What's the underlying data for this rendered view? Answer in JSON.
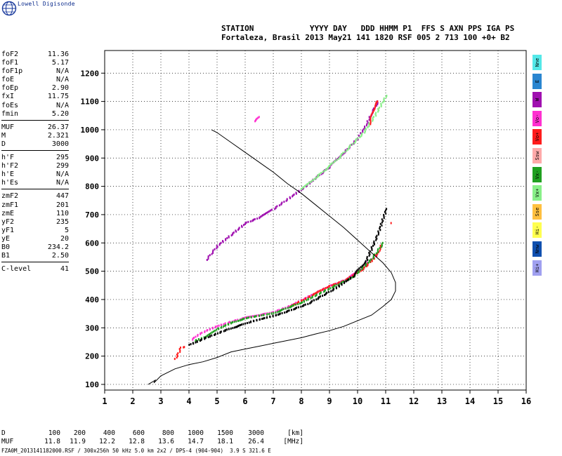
{
  "brand": "Lowell Digisonde",
  "header": {
    "line1": "STATION            YYYY DAY   DDD HHMM P1  FFS S AXN PPS IGA PS",
    "line2": "Fortaleza, Brasil 2013 May21 141 1820 RSF 005 2 713 100 +0+ B2"
  },
  "params": [
    {
      "label": "foF2",
      "value": "11.36"
    },
    {
      "label": "foF1",
      "value": "5.17"
    },
    {
      "label": "foF1p",
      "value": "N/A"
    },
    {
      "label": "foE",
      "value": "N/A"
    },
    {
      "label": "foEp",
      "value": "2.90"
    },
    {
      "label": "fxI",
      "value": "11.75"
    },
    {
      "label": "foEs",
      "value": "N/A"
    },
    {
      "label": "fmin",
      "value": "5.20"
    },
    {
      "sep": true
    },
    {
      "label": "MUF",
      "value": "26.37"
    },
    {
      "label": "M",
      "value": "2.321"
    },
    {
      "label": "D",
      "value": "3000"
    },
    {
      "sep": true
    },
    {
      "label": "h'F",
      "value": "295"
    },
    {
      "label": "h'F2",
      "value": "299"
    },
    {
      "label": "h'E",
      "value": "N/A"
    },
    {
      "label": "h'Es",
      "value": "N/A"
    },
    {
      "sep": true
    },
    {
      "label": "zmF2",
      "value": "447"
    },
    {
      "label": "zmF1",
      "value": "201"
    },
    {
      "label": "zmE",
      "value": "110"
    },
    {
      "label": "yF2",
      "value": "235"
    },
    {
      "label": "yF1",
      "value": "5"
    },
    {
      "label": "yE",
      "value": "20"
    },
    {
      "label": "B0",
      "value": "234.2"
    },
    {
      "label": "B1",
      "value": "2.50"
    },
    {
      "sep": true
    },
    {
      "label": "C-level",
      "value": "41"
    }
  ],
  "legend": [
    {
      "label": "Nne",
      "color": "#54e8e8"
    },
    {
      "label": "E",
      "color": "#2a86d0"
    },
    {
      "label": "W",
      "color": "#a010b0"
    },
    {
      "label": "Vo-",
      "color": "#ff30d0"
    },
    {
      "label": "Vo+",
      "color": "#ff1c1c"
    },
    {
      "label": "Ssw",
      "color": "#ffaaaa"
    },
    {
      "label": "Vx-",
      "color": "#20a020"
    },
    {
      "label": "Vx+",
      "color": "#88f088"
    },
    {
      "label": "Sse",
      "color": "#ffc040"
    },
    {
      "label": "Hi-",
      "color": "#ffff50"
    },
    {
      "label": "Nnw",
      "color": "#1050b0"
    },
    {
      "label": "Hi+",
      "color": "#a0a0f0"
    }
  ],
  "muf_table": {
    "d_label": "D",
    "d_values": [
      "100",
      "200",
      "400",
      "600",
      "800",
      "1000",
      "1500",
      "3000"
    ],
    "d_unit": "[km]",
    "muf_label": "MUF",
    "muf_values": [
      "11.8",
      "11.9",
      "12.2",
      "12.8",
      "13.6",
      "14.7",
      "18.1",
      "26.4"
    ],
    "muf_unit": "[MHz]"
  },
  "footer": "FZA0M_2013141182000.RSF / 300x256h 50 kHz 5.0 km 2x2 / DPS-4 (904-904)  3.9 S 321.6 E",
  "chart_data": {
    "type": "scatter",
    "xlim": [
      1,
      16
    ],
    "ylim": [
      80,
      1280
    ],
    "x_ticks": [
      1,
      2,
      3,
      4,
      5,
      6,
      7,
      8,
      9,
      10,
      11,
      12,
      13,
      14,
      15,
      16
    ],
    "y_ticks": [
      100,
      200,
      300,
      400,
      500,
      600,
      700,
      800,
      900,
      1000,
      1100,
      1200
    ],
    "grid": true,
    "profile": {
      "x": [
        2.55,
        2.8,
        2.75,
        3.0,
        3.5,
        4.0,
        4.5,
        5.0,
        5.5,
        6.0,
        6.5,
        7.0,
        7.5,
        8.0,
        8.5,
        9.0,
        9.5,
        10.0,
        10.5,
        10.9,
        11.2,
        11.35,
        11.35,
        11.2,
        10.9,
        10.5,
        10.0,
        9.5,
        9.0,
        8.5,
        8.0,
        7.5,
        7.0,
        6.5,
        6.0,
        5.5,
        5.0,
        4.8
      ],
      "y": [
        100,
        115,
        105,
        130,
        155,
        170,
        180,
        195,
        215,
        225,
        235,
        245,
        255,
        265,
        278,
        290,
        305,
        325,
        345,
        375,
        400,
        430,
        460,
        495,
        530,
        565,
        610,
        655,
        695,
        735,
        775,
        810,
        850,
        885,
        920,
        955,
        990,
        1000
      ]
    },
    "series": [
      {
        "color": "#ff30d0",
        "x": [
          4.1,
          4.3,
          4.6,
          5.0,
          5.5,
          6.0,
          6.5,
          7.0,
          7.5,
          8.0,
          8.5,
          9.0,
          9.5,
          10.0,
          10.4,
          10.7
        ],
        "y": [
          258,
          275,
          290,
          306,
          322,
          336,
          345,
          356,
          374,
          398,
          424,
          448,
          468,
          498,
          535,
          560
        ]
      },
      {
        "color": "#ff1c1c",
        "x": [
          7.6,
          8.0,
          8.5,
          9.0,
          9.5,
          9.9,
          10.2,
          10.5,
          10.7,
          10.8
        ],
        "y": [
          376,
          396,
          422,
          448,
          466,
          490,
          510,
          540,
          562,
          590
        ]
      },
      {
        "color": "#20a020",
        "x": [
          4.2,
          4.6,
          5.0,
          5.5,
          6.0,
          7.0,
          8.0,
          9.0,
          9.8,
          10.5,
          10.9
        ],
        "y": [
          255,
          268,
          296,
          318,
          334,
          352,
          390,
          440,
          478,
          545,
          600
        ]
      },
      {
        "color": "#000000",
        "x": [
          4.0,
          4.6,
          5.3,
          6.2,
          7.2,
          8.2,
          9.2,
          9.8,
          10.3,
          10.7,
          11.0
        ],
        "y": [
          240,
          265,
          292,
          322,
          348,
          384,
          440,
          480,
          540,
          630,
          720
        ]
      },
      {
        "color": "#a010b0",
        "x": [
          4.6,
          5.0,
          5.5,
          6.0,
          6.5,
          7.0,
          7.5,
          8.0,
          8.5,
          9.0,
          9.5,
          10.0,
          10.3,
          10.5,
          10.7
        ],
        "y": [
          540,
          590,
          630,
          670,
          690,
          720,
          755,
          790,
          830,
          870,
          920,
          970,
          1020,
          1060,
          1100
        ]
      },
      {
        "color": "#88f088",
        "x": [
          8.0,
          8.6,
          9.2,
          9.8,
          10.2,
          10.6,
          11.0
        ],
        "y": [
          790,
          840,
          890,
          950,
          990,
          1050,
          1120
        ]
      },
      {
        "color": "#ff30d0",
        "x": [
          6.3,
          6.5
        ],
        "y": [
          1030,
          1045
        ]
      },
      {
        "color": "#ff1c1c",
        "x": [
          3.5,
          3.7,
          3.8,
          10.4,
          10.6,
          10.7,
          11.2
        ],
        "y": [
          190,
          230,
          232,
          1020,
          1090,
          1100,
          670
        ]
      }
    ]
  }
}
